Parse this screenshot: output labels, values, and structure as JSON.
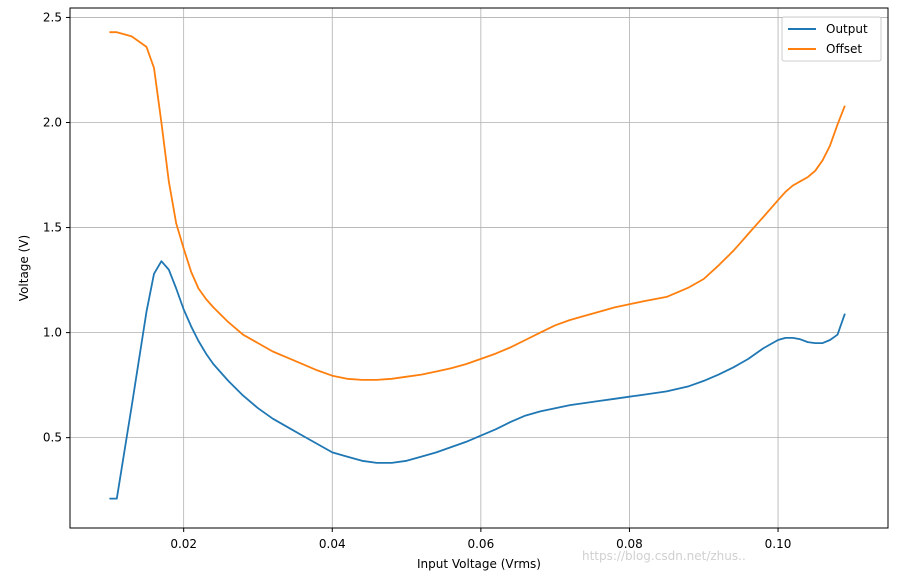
{
  "chart_data": {
    "type": "line",
    "xlabel": "Input Voltage (Vrms)",
    "ylabel": "Voltage (V)",
    "xlim": [
      0.0047,
      0.1148
    ],
    "ylim": [
      0.07,
      2.545
    ],
    "x_ticks": [
      0.02,
      0.04,
      0.06,
      0.08,
      0.1
    ],
    "x_tick_labels": [
      "0.02",
      "0.04",
      "0.06",
      "0.08",
      "0.10"
    ],
    "y_ticks": [
      0.5,
      1.0,
      1.5,
      2.0,
      2.5
    ],
    "y_tick_labels": [
      "0.5",
      "1.0",
      "1.5",
      "2.0",
      "2.5"
    ],
    "grid": true,
    "legend_position": "top-right",
    "x": [
      0.01,
      0.011,
      0.013,
      0.015,
      0.016,
      0.017,
      0.018,
      0.019,
      0.02,
      0.021,
      0.022,
      0.023,
      0.024,
      0.026,
      0.028,
      0.03,
      0.032,
      0.034,
      0.036,
      0.038,
      0.04,
      0.042,
      0.044,
      0.046,
      0.048,
      0.05,
      0.052,
      0.054,
      0.056,
      0.058,
      0.06,
      0.062,
      0.064,
      0.066,
      0.068,
      0.07,
      0.072,
      0.074,
      0.076,
      0.078,
      0.08,
      0.082,
      0.085,
      0.088,
      0.09,
      0.092,
      0.094,
      0.095,
      0.096,
      0.098,
      0.1,
      0.101,
      0.102,
      0.103,
      0.104,
      0.105,
      0.106,
      0.107,
      0.108,
      0.109
    ],
    "series": [
      {
        "name": "Output",
        "color": "#1f77b4",
        "values": [
          0.21,
          0.21,
          0.65,
          1.1,
          1.28,
          1.34,
          1.3,
          1.21,
          1.11,
          1.03,
          0.96,
          0.9,
          0.85,
          0.77,
          0.7,
          0.64,
          0.59,
          0.55,
          0.51,
          0.47,
          0.43,
          0.41,
          0.39,
          0.38,
          0.38,
          0.39,
          0.41,
          0.43,
          0.455,
          0.48,
          0.51,
          0.54,
          0.575,
          0.605,
          0.625,
          0.64,
          0.655,
          0.665,
          0.675,
          0.685,
          0.695,
          0.705,
          0.72,
          0.745,
          0.77,
          0.8,
          0.835,
          0.855,
          0.875,
          0.925,
          0.965,
          0.975,
          0.975,
          0.968,
          0.955,
          0.95,
          0.95,
          0.965,
          0.99,
          1.09
        ]
      },
      {
        "name": "Offset",
        "color": "#ff7f0e",
        "values": [
          2.43,
          2.43,
          2.41,
          2.36,
          2.26,
          2.0,
          1.72,
          1.52,
          1.4,
          1.29,
          1.21,
          1.16,
          1.12,
          1.05,
          0.99,
          0.95,
          0.91,
          0.88,
          0.85,
          0.82,
          0.795,
          0.78,
          0.775,
          0.775,
          0.78,
          0.79,
          0.8,
          0.815,
          0.83,
          0.85,
          0.875,
          0.9,
          0.93,
          0.965,
          1.0,
          1.035,
          1.06,
          1.08,
          1.1,
          1.12,
          1.135,
          1.15,
          1.17,
          1.215,
          1.255,
          1.32,
          1.39,
          1.43,
          1.47,
          1.55,
          1.63,
          1.67,
          1.7,
          1.72,
          1.74,
          1.77,
          1.82,
          1.89,
          1.99,
          2.08
        ]
      }
    ]
  },
  "legend": {
    "items": [
      "Output",
      "Offset"
    ]
  },
  "watermark": {
    "text": "https://blog.csdn.net/zhus.."
  }
}
